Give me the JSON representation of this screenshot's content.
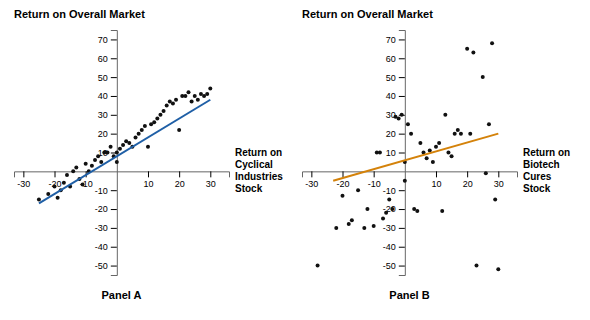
{
  "chart_data": [
    {
      "type": "scatter",
      "title": "Return on Overall Market",
      "xlabel": [
        "Return on",
        "Cyclical",
        "Industries",
        "Stock"
      ],
      "annotations": [
        "Panel A"
      ],
      "series": [
        {
          "type": "scatter",
          "color": "#111111",
          "marker": "circle",
          "x": [
            -25,
            -22,
            -20,
            -19,
            -18,
            -17,
            -16,
            -15,
            -14,
            -13,
            -12,
            -11,
            -10,
            -9,
            -8,
            -7,
            -6,
            -5,
            -4,
            -3,
            -2,
            -1,
            0,
            0,
            1,
            2,
            3,
            4,
            5,
            6,
            7,
            8,
            9,
            10,
            11,
            12,
            13,
            14,
            15,
            16,
            17,
            18,
            19,
            20,
            21,
            22,
            23,
            24,
            25,
            26,
            27,
            28,
            29,
            30
          ],
          "values": [
            -15,
            -12,
            -8,
            -14,
            -10,
            -6,
            -2,
            -8,
            0,
            2,
            -4,
            -7,
            4,
            0,
            3,
            6,
            8,
            5,
            10,
            10,
            13,
            8,
            5,
            10,
            12,
            14,
            16,
            15,
            13,
            18,
            20,
            22,
            24,
            13,
            25,
            26,
            28,
            30,
            32,
            35,
            37,
            36,
            38,
            22,
            40,
            40,
            42,
            37,
            40,
            38,
            41,
            40,
            41,
            44
          ]
        },
        {
          "type": "line",
          "color": "#1f5fa6",
          "line_style": "solid",
          "x": [
            -25,
            30
          ],
          "values": [
            -17,
            38
          ]
        }
      ],
      "xlim": [
        -33,
        36
      ],
      "ylim": [
        -55,
        75
      ],
      "xticks": [
        -30,
        -20,
        -10,
        10,
        20,
        30
      ],
      "yticks": [
        -50,
        -40,
        -30,
        -20,
        -10,
        10,
        20,
        30,
        40,
        50,
        60,
        70
      ],
      "grid": false
    },
    {
      "type": "scatter",
      "title": "Return on Overall Market",
      "xlabel": [
        "Return on",
        "Biotech",
        "Cures",
        "Stock"
      ],
      "annotations": [
        "Panel B"
      ],
      "series": [
        {
          "type": "scatter",
          "color": "#111111",
          "marker": "circle",
          "x": [
            -28,
            -22,
            -20,
            -18,
            -17,
            -15,
            -13,
            -12,
            -10,
            -9,
            -8,
            -7,
            -6,
            -5,
            -4,
            -3,
            -2,
            -1,
            0,
            0,
            1,
            2,
            3,
            4,
            5,
            6,
            7,
            8,
            9,
            10,
            11,
            12,
            13,
            14,
            15,
            16,
            17,
            18,
            20,
            21,
            22,
            23,
            25,
            26,
            27,
            28,
            29,
            30
          ],
          "values": [
            -50,
            -30,
            -13,
            -28,
            -26,
            -10,
            -30,
            -20,
            -29,
            10,
            10,
            -25,
            -22,
            -15,
            -20,
            29,
            28,
            30,
            -5,
            5,
            25,
            20,
            -20,
            -21,
            15,
            10,
            7,
            11,
            5,
            13,
            15,
            -21,
            30,
            10,
            8,
            20,
            22,
            20,
            65,
            20,
            63,
            -50,
            50,
            -1,
            25,
            68,
            -15,
            -52
          ]
        },
        {
          "type": "line",
          "color": "#d4820a",
          "line_style": "solid",
          "x": [
            -23,
            30
          ],
          "values": [
            -5,
            20
          ]
        }
      ],
      "xlim": [
        -33,
        36
      ],
      "ylim": [
        -55,
        75
      ],
      "xticks": [
        -30,
        -20,
        -10,
        10,
        20,
        30
      ],
      "yticks": [
        -50,
        -40,
        -30,
        -20,
        -10,
        10,
        20,
        30,
        40,
        50,
        60,
        70
      ],
      "grid": false
    }
  ]
}
